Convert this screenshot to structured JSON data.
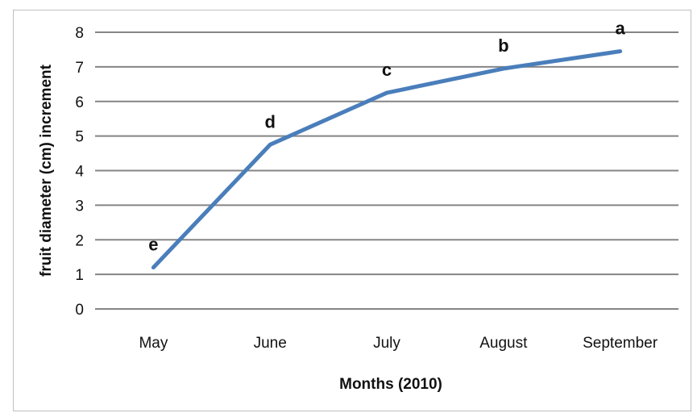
{
  "chart_data": {
    "type": "line",
    "title": "",
    "xlabel": "Months (2010)",
    "ylabel": "fruit diameter (cm) increment",
    "categories": [
      "May",
      "June",
      "July",
      "August",
      "September"
    ],
    "series": [
      {
        "values": [
          1.2,
          4.75,
          6.25,
          6.95,
          7.45
        ],
        "color": "#4a7ebb"
      }
    ],
    "point_labels": [
      "e",
      "d",
      "c",
      "b",
      "a"
    ],
    "ylim": [
      0,
      8
    ],
    "yticks": [
      "0",
      "1",
      "2",
      "3",
      "4",
      "5",
      "6",
      "7",
      "8"
    ],
    "grid": true,
    "legend": "none",
    "grid_color": "#858585"
  }
}
